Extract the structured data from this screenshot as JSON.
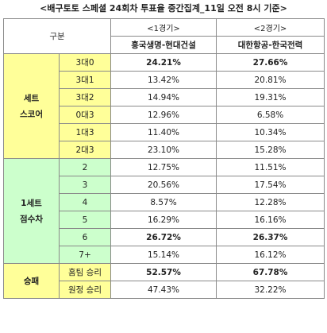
{
  "title": "<배구토토 스페셜 24회차 투표율 중간집계_11일 오전 8시 기준>",
  "header": {
    "gubun": "구분",
    "game1": "<1경기>",
    "game2": "<2경기>",
    "team1": "흥국생명-현대건설",
    "team2": "대한항공-한국전력"
  },
  "sections": [
    {
      "label_line1": "세트",
      "label_line2": "스코어",
      "rows": [
        {
          "label": "3대0",
          "g1": "24.21%",
          "g2": "27.66%",
          "bold1": true,
          "bold2": true
        },
        {
          "label": "3대1",
          "g1": "13.42%",
          "g2": "20.81%"
        },
        {
          "label": "3대2",
          "g1": "14.94%",
          "g2": "19.31%"
        },
        {
          "label": "0대3",
          "g1": "12.96%",
          "g2": "6.58%"
        },
        {
          "label": "1대3",
          "g1": "11.40%",
          "g2": "10.34%"
        },
        {
          "label": "2대3",
          "g1": "23.10%",
          "g2": "15.28%"
        }
      ]
    },
    {
      "label_line1": "1세트",
      "label_line2": "점수차",
      "rows": [
        {
          "label": "2",
          "g1": "12.75%",
          "g2": "11.51%"
        },
        {
          "label": "3",
          "g1": "20.56%",
          "g2": "17.54%"
        },
        {
          "label": "4",
          "g1": "8.57%",
          "g2": "12.28%"
        },
        {
          "label": "5",
          "g1": "16.29%",
          "g2": "16.16%"
        },
        {
          "label": "6",
          "g1": "26.72%",
          "g2": "26.37%",
          "bold1": true,
          "bold2": true
        },
        {
          "label": "7+",
          "g1": "15.14%",
          "g2": "16.12%"
        }
      ]
    },
    {
      "label_line1": "승패",
      "label_line2": "",
      "rows": [
        {
          "label": "홈팀 승리",
          "g1": "52.57%",
          "g2": "67.78%",
          "bold1": true,
          "bold2": true
        },
        {
          "label": "원정 승리",
          "g1": "47.43%",
          "g2": "32.22%"
        }
      ]
    }
  ],
  "colors": {
    "yellow": "#ffff99",
    "green": "#ccffcc",
    "border": "#8a8a8a"
  }
}
